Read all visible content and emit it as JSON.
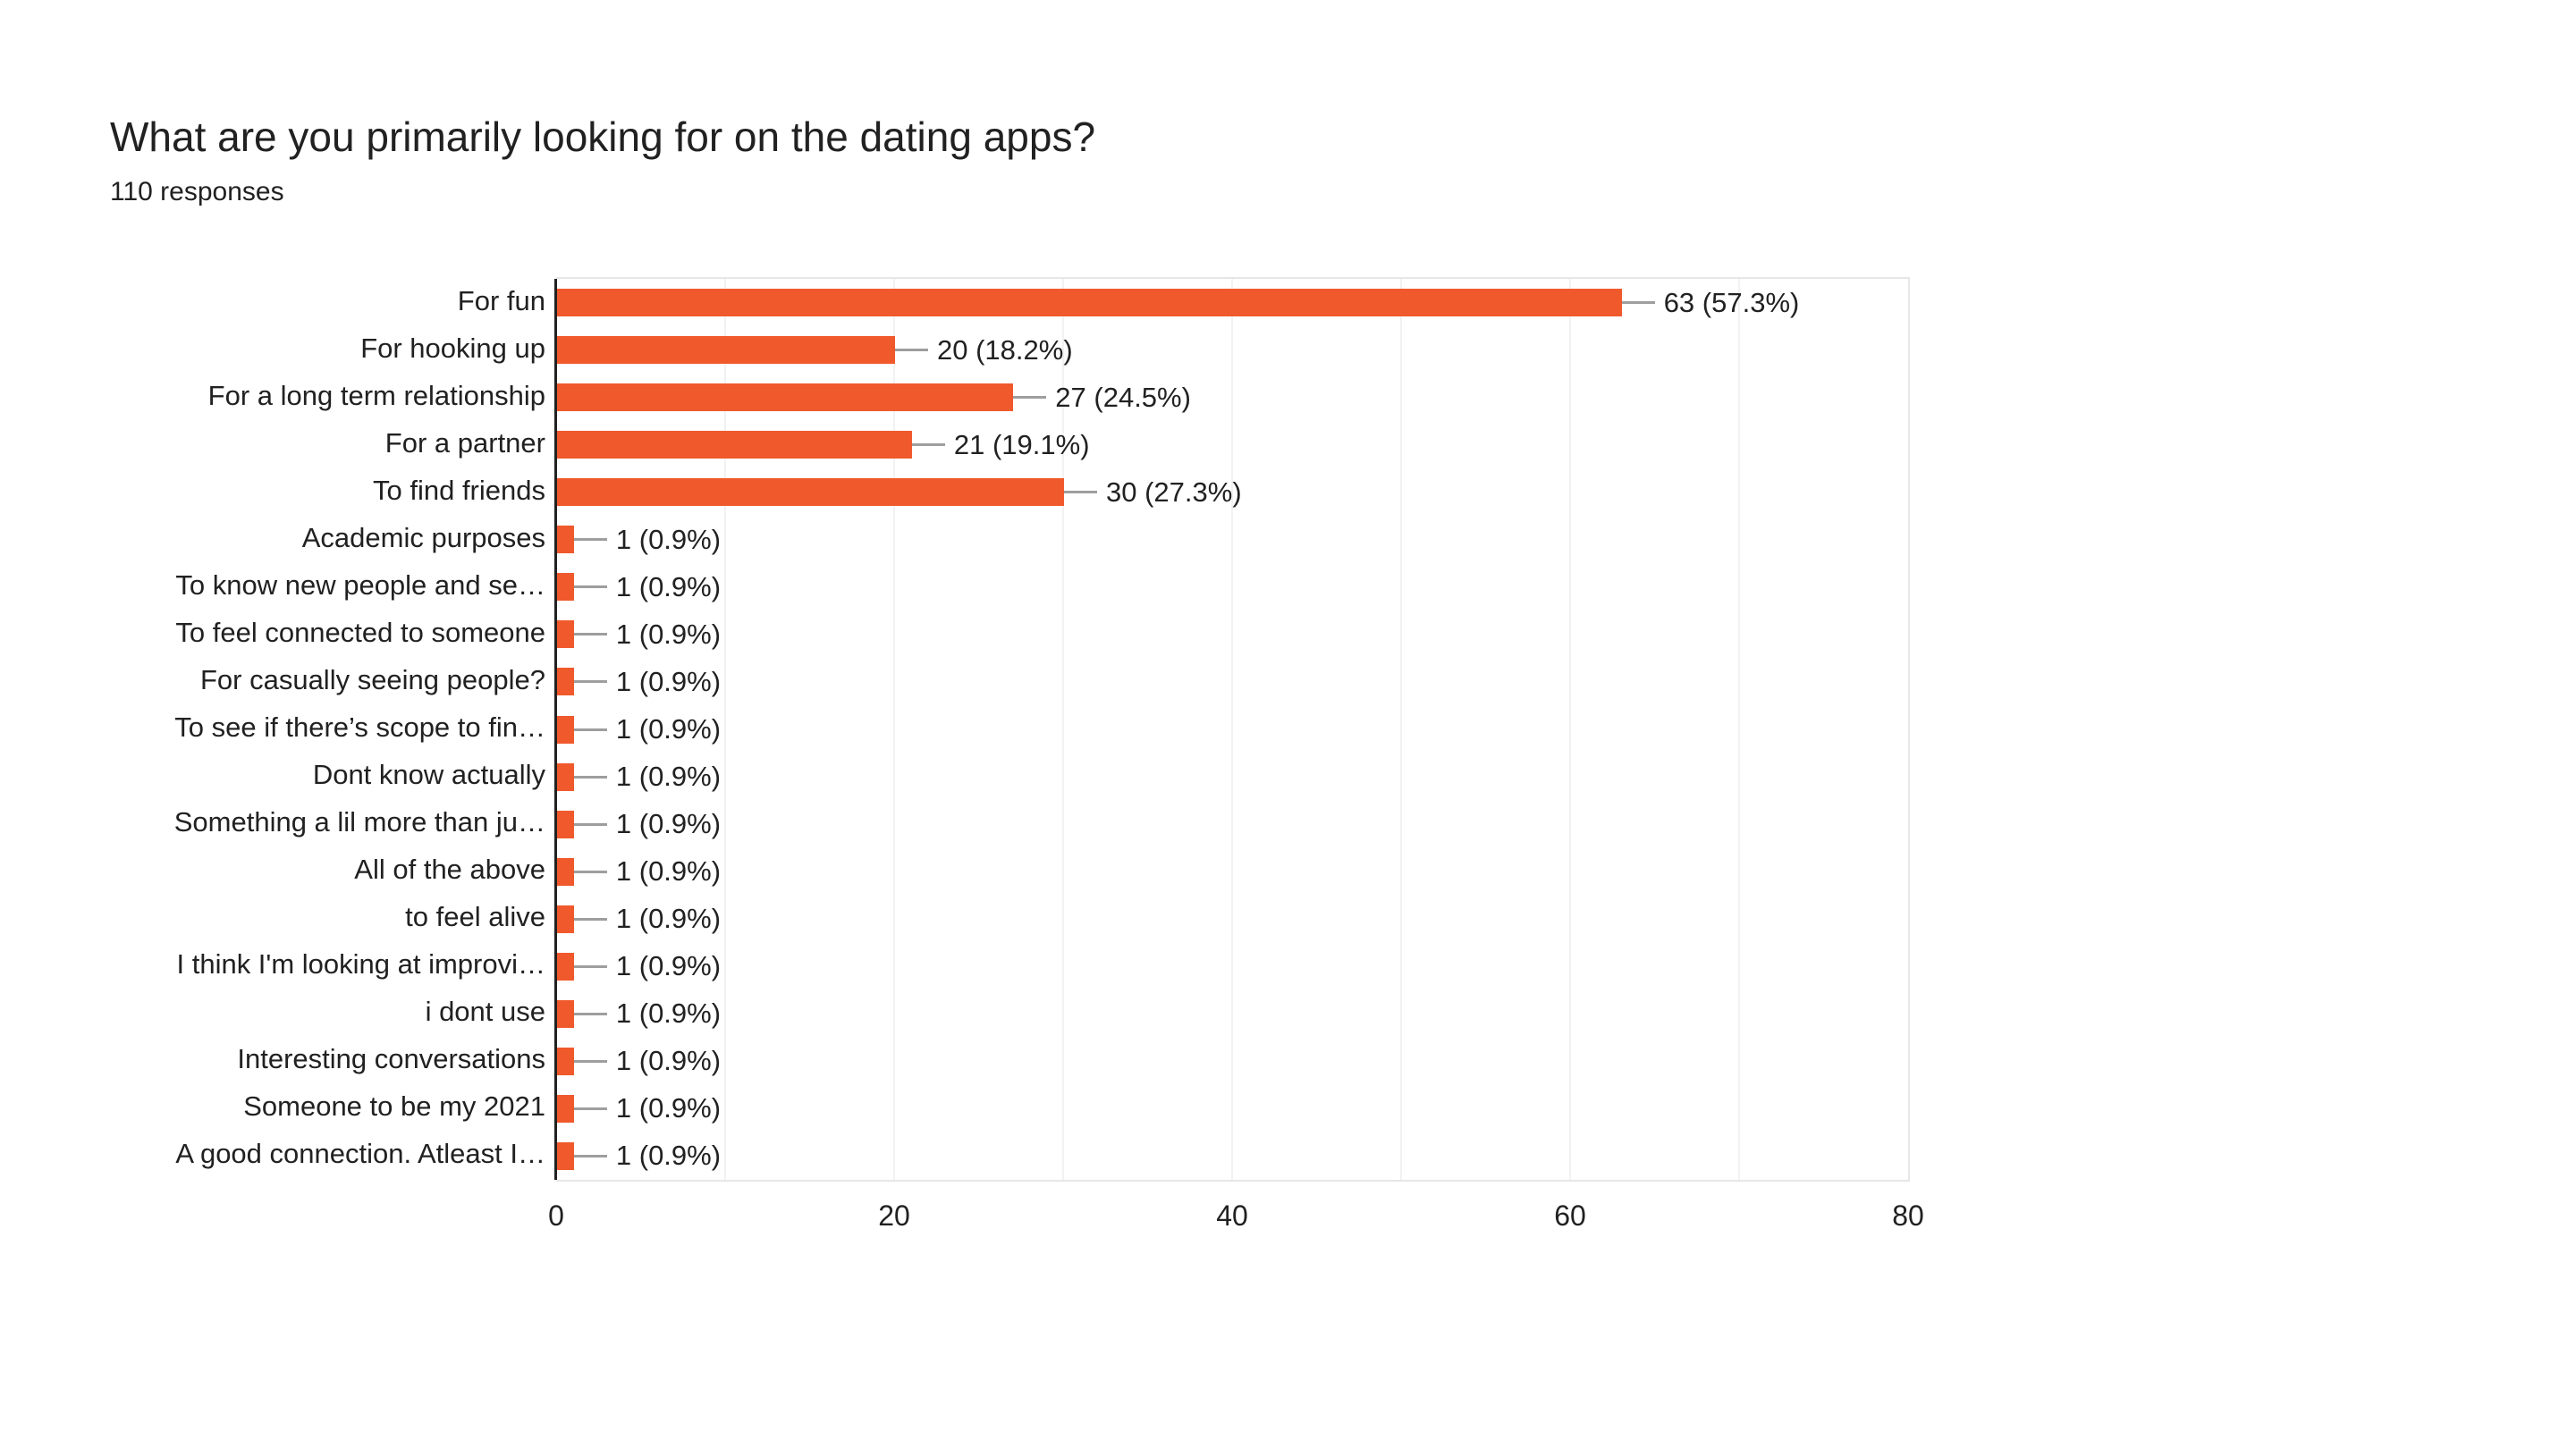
{
  "header": {
    "title": "What are you primarily looking for on the dating apps?",
    "subtitle": "110 responses"
  },
  "colors": {
    "bar": "#F0592C",
    "connector": "#9E9E9E",
    "text": "#212121",
    "grid": "#F2F2F2",
    "border": "#E7E7E7",
    "axis": "#212121",
    "bg": "#FFFFFF"
  },
  "chart_data": {
    "type": "bar",
    "orientation": "horizontal",
    "title": "What are you primarily looking for on the dating apps?",
    "subtitle": "110 responses",
    "categories": [
      "For fun",
      "For hooking up",
      "For a long term relationship",
      "For a partner",
      "To find friends",
      "Academic purposes",
      "To know new people and se…",
      "To feel connected to someone",
      "For casually seeing people?",
      "To see if there’s scope to fin…",
      "Dont know actually",
      "Something a lil more than ju…",
      "All of the above",
      "to feel alive",
      "I think I'm looking at improvi…",
      "i dont use",
      "Interesting conversations",
      "Someone to be my 2021",
      "A good connection. Atleast I…"
    ],
    "values": [
      63,
      20,
      27,
      21,
      30,
      1,
      1,
      1,
      1,
      1,
      1,
      1,
      1,
      1,
      1,
      1,
      1,
      1,
      1
    ],
    "value_labels": [
      "63 (57.3%)",
      "20 (18.2%)",
      "27 (24.5%)",
      "21 (19.1%)",
      "30 (27.3%)",
      "1 (0.9%)",
      "1 (0.9%)",
      "1 (0.9%)",
      "1 (0.9%)",
      "1 (0.9%)",
      "1 (0.9%)",
      "1 (0.9%)",
      "1 (0.9%)",
      "1 (0.9%)",
      "1 (0.9%)",
      "1 (0.9%)",
      "1 (0.9%)",
      "1 (0.9%)",
      "1 (0.9%)"
    ],
    "xlabel": "",
    "ylabel": "",
    "xlim": [
      0,
      80
    ],
    "x_ticks": [
      0,
      20,
      40,
      60,
      80
    ],
    "gridline_step": 10,
    "grid": true,
    "legend": "none"
  }
}
